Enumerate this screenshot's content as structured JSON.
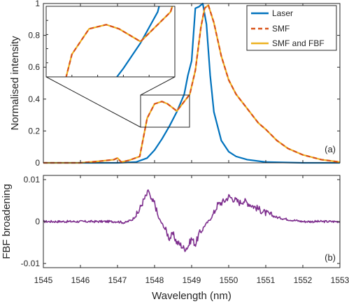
{
  "chart_data": [
    {
      "panel": "top",
      "type": "line",
      "ylabel": "Normalised intensity",
      "xlim": [
        1545,
        1553
      ],
      "ylim": [
        0,
        1
      ],
      "x_ticks": [
        "1545",
        "1546",
        "1547",
        "1548",
        "1549",
        "1550",
        "1551",
        "1552",
        "1553"
      ],
      "y_ticks": [
        "0",
        "0.2",
        "0.4",
        "0.6",
        "0.8",
        "1"
      ],
      "panel_label": "(a)",
      "legend_position": "top-right",
      "series": [
        {
          "name": "Laser",
          "color": "#0072BD",
          "style": "solid",
          "x": [
            1545,
            1546,
            1547,
            1547.5,
            1547.8,
            1548.0,
            1548.2,
            1548.4,
            1548.6,
            1548.8,
            1548.9,
            1549.0,
            1549.1,
            1549.2,
            1549.3,
            1549.4,
            1549.5,
            1549.6,
            1549.8,
            1550.0,
            1550.2,
            1550.5,
            1551.0,
            1552.0,
            1553.0
          ],
          "y": [
            0,
            0,
            0,
            0.005,
            0.03,
            0.08,
            0.15,
            0.23,
            0.32,
            0.43,
            0.55,
            0.64,
            0.97,
            0.98,
            1.0,
            0.87,
            0.55,
            0.32,
            0.14,
            0.07,
            0.04,
            0.02,
            0.005,
            0,
            0
          ]
        },
        {
          "name": "SMF",
          "color": "#D95319",
          "style": "dashed",
          "x": [
            1545,
            1546,
            1546.5,
            1546.9,
            1547.0,
            1547.1,
            1547.3,
            1547.6,
            1547.8,
            1548.0,
            1548.2,
            1548.35,
            1548.6,
            1548.75,
            1548.95,
            1549.1,
            1549.25,
            1549.35,
            1549.45,
            1549.6,
            1549.8,
            1550.0,
            1550.2,
            1550.5,
            1550.8,
            1551.0,
            1551.3,
            1551.6,
            1552.0,
            1552.5,
            1553.0
          ],
          "y": [
            0,
            0,
            0.01,
            0.02,
            0.03,
            0.005,
            0.015,
            0.04,
            0.28,
            0.37,
            0.385,
            0.37,
            0.325,
            0.37,
            0.43,
            0.58,
            0.85,
            0.97,
            0.99,
            0.88,
            0.67,
            0.52,
            0.43,
            0.34,
            0.25,
            0.21,
            0.14,
            0.09,
            0.05,
            0.02,
            0.005
          ]
        },
        {
          "name": "SMF and FBF",
          "color": "#EDB120",
          "style": "solid",
          "x": [
            1545,
            1546,
            1546.5,
            1546.9,
            1547.0,
            1547.1,
            1547.3,
            1547.6,
            1547.8,
            1548.0,
            1548.2,
            1548.35,
            1548.6,
            1548.75,
            1548.95,
            1549.1,
            1549.25,
            1549.35,
            1549.45,
            1549.6,
            1549.8,
            1550.0,
            1550.2,
            1550.5,
            1550.8,
            1551.0,
            1551.3,
            1551.6,
            1552.0,
            1552.5,
            1553.0
          ],
          "y": [
            0,
            0,
            0.01,
            0.02,
            0.03,
            0.005,
            0.015,
            0.04,
            0.28,
            0.37,
            0.385,
            0.37,
            0.325,
            0.37,
            0.43,
            0.58,
            0.85,
            0.97,
            0.99,
            0.88,
            0.67,
            0.52,
            0.43,
            0.34,
            0.25,
            0.21,
            0.14,
            0.09,
            0.05,
            0.02,
            0.005
          ]
        }
      ],
      "inset": {
        "xlim": [
          1547.5,
          1549.0
        ],
        "ylim": [
          0.2,
          0.45
        ]
      }
    },
    {
      "panel": "bottom",
      "type": "line",
      "ylabel": "FBF broadening",
      "xlabel": "Wavelength (nm)",
      "xlim": [
        1545,
        1553
      ],
      "ylim": [
        -0.011,
        0.011
      ],
      "x_ticks": [
        "1545",
        "1546",
        "1547",
        "1548",
        "1549",
        "1550",
        "1551",
        "1552",
        "1553"
      ],
      "y_ticks": [
        "0.01",
        "0",
        "-0.01"
      ],
      "panel_label": "(b)",
      "series": [
        {
          "name": "",
          "color": "#7E2F8E",
          "x": [
            1545,
            1545.5,
            1546,
            1546.5,
            1547.0,
            1547.2,
            1547.4,
            1547.55,
            1547.7,
            1547.8,
            1547.85,
            1547.9,
            1548.0,
            1548.1,
            1548.2,
            1548.3,
            1548.4,
            1548.5,
            1548.6,
            1548.7,
            1548.8,
            1548.9,
            1549.0,
            1549.1,
            1549.2,
            1549.35,
            1549.5,
            1549.6,
            1549.7,
            1549.8,
            1549.9,
            1550.0,
            1550.1,
            1550.2,
            1550.3,
            1550.4,
            1550.6,
            1550.8,
            1551.0,
            1551.3,
            1551.6,
            1552.0,
            1552.5,
            1553.0
          ],
          "y": [
            0.0,
            0.0,
            0.0,
            0.0,
            0.0,
            -0.0003,
            0.0005,
            0.002,
            0.005,
            0.0065,
            0.0075,
            0.005,
            0.0045,
            0.001,
            -0.0005,
            -0.002,
            -0.004,
            -0.003,
            -0.005,
            -0.0055,
            -0.0065,
            -0.006,
            -0.004,
            -0.0055,
            -0.003,
            -0.001,
            0.0005,
            0.002,
            0.004,
            0.0045,
            0.005,
            0.006,
            0.0055,
            0.005,
            0.0045,
            0.005,
            0.004,
            0.003,
            0.002,
            0.001,
            0.0005,
            0.0,
            0.0,
            0.0
          ]
        }
      ]
    }
  ]
}
